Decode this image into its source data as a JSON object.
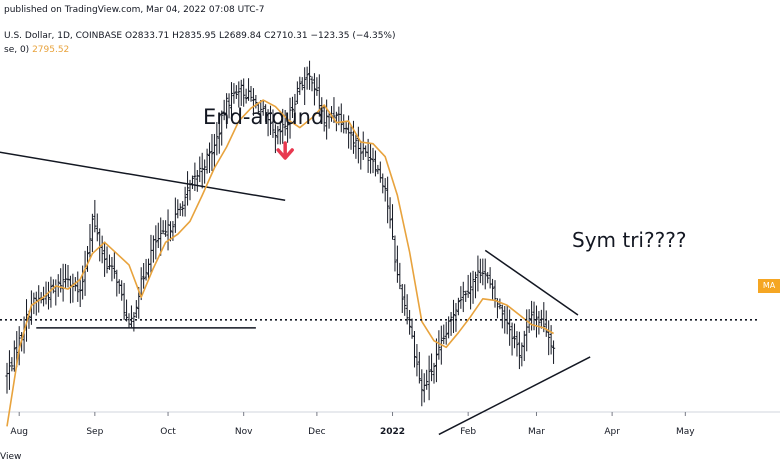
{
  "header": {
    "published": "published on TradingView.com, Mar 04, 2022 07:08 UTC-7",
    "ohlc": "U.S. Dollar, 1D, COINBASE  O2833.71  H2835.95  L2689.84  C2710.31  −123.35 (−4.35%)",
    "ma_prefix": "se, 0)",
    "ma_value": "2795.52"
  },
  "footer": {
    "brand": "View"
  },
  "annotations": {
    "end_around": "End-around",
    "sym_tri": "Sym tri????"
  },
  "price_scale": {
    "ma_tag": "MA"
  },
  "colors": {
    "candles": "#131722",
    "ma_line": "#e8a33d",
    "arrow": "#e8384f",
    "trendlines": "#131722",
    "ma_tag_bg": "#f5a623"
  },
  "chart_data": {
    "type": "line",
    "title": "",
    "xlabel": "",
    "ylabel": "",
    "x_ticks": [
      {
        "label": "Aug",
        "bold": false
      },
      {
        "label": "Sep",
        "bold": false
      },
      {
        "label": "Oct",
        "bold": false
      },
      {
        "label": "Nov",
        "bold": false
      },
      {
        "label": "Dec",
        "bold": false
      },
      {
        "label": "2022",
        "bold": true
      },
      {
        "label": "Feb",
        "bold": false
      },
      {
        "label": "Mar",
        "bold": false
      },
      {
        "label": "Apr",
        "bold": false
      },
      {
        "label": "May",
        "bold": false
      }
    ],
    "x_tick_days": [
      5,
      36,
      66,
      97,
      127,
      158,
      189,
      217,
      248,
      278
    ],
    "series": [
      {
        "name": "Price",
        "style": "ohlc-bars",
        "x_days": [
          0,
          5,
          10,
          15,
          20,
          25,
          30,
          35,
          40,
          45,
          50,
          55,
          60,
          65,
          70,
          75,
          80,
          85,
          90,
          95,
          100,
          105,
          110,
          115,
          120,
          125,
          130,
          135,
          140,
          145,
          150,
          155,
          160,
          165,
          170,
          175,
          180,
          185,
          190,
          195,
          200,
          205,
          210,
          215,
          220,
          224
        ],
        "values": [
          2540,
          2750,
          2980,
          3020,
          3080,
          3150,
          3030,
          3500,
          3250,
          3140,
          2820,
          3100,
          3350,
          3410,
          3540,
          3700,
          3830,
          3950,
          4220,
          4320,
          4250,
          4160,
          4000,
          4100,
          4350,
          4380,
          4110,
          4170,
          4050,
          3930,
          3880,
          3700,
          3150,
          2850,
          2440,
          2600,
          2800,
          3010,
          3100,
          3200,
          3010,
          2870,
          2680,
          2910,
          2860,
          2710
        ]
      },
      {
        "name": "MA",
        "style": "line",
        "x_days": [
          0,
          5,
          10,
          15,
          20,
          25,
          30,
          35,
          40,
          45,
          50,
          55,
          60,
          65,
          70,
          75,
          80,
          85,
          90,
          95,
          100,
          105,
          110,
          115,
          120,
          125,
          130,
          135,
          140,
          145,
          150,
          155,
          160,
          165,
          170,
          175,
          180,
          185,
          190,
          195,
          200,
          205,
          210,
          215,
          220,
          224
        ],
        "values": [
          2220,
          2700,
          2970,
          3020,
          3090,
          3070,
          3130,
          3290,
          3360,
          3290,
          3220,
          3020,
          3200,
          3360,
          3410,
          3490,
          3650,
          3820,
          3950,
          4110,
          4190,
          4240,
          4200,
          4120,
          4070,
          4130,
          4210,
          4100,
          4110,
          3980,
          3970,
          3890,
          3650,
          3300,
          2870,
          2750,
          2710,
          2800,
          2900,
          3010,
          3000,
          2970,
          2910,
          2850,
          2830,
          2795
        ]
      }
    ],
    "trendlines": [
      {
        "x_days": [
          -4,
          114
        ],
        "values": [
          3920,
          3620
        ]
      },
      {
        "x_days": [
          12,
          102
        ],
        "values": [
          2830,
          2830
        ]
      },
      {
        "x_days": [
          196,
          234
        ],
        "values": [
          3310,
          2910
        ]
      },
      {
        "x_days": [
          177,
          239
        ],
        "values": [
          2170,
          2650
        ]
      }
    ],
    "horizontal_level": {
      "value": 2880,
      "style": "dotted"
    },
    "arrow_day": 114,
    "y_min": 1950,
    "y_max": 4860,
    "grid": false
  }
}
